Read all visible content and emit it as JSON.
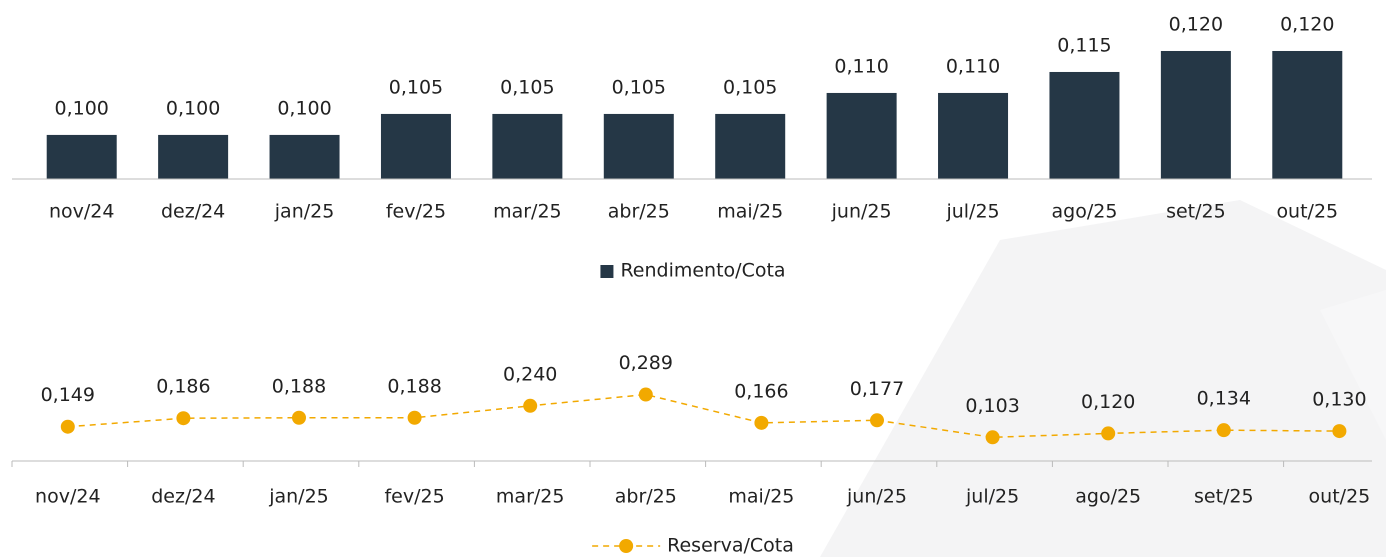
{
  "chart_data": [
    {
      "type": "bar",
      "categories": [
        "nov/24",
        "dez/24",
        "jan/25",
        "fev/25",
        "mar/25",
        "abr/25",
        "mai/25",
        "jun/25",
        "jul/25",
        "ago/25",
        "set/25",
        "out/25"
      ],
      "series": [
        {
          "name": "Rendimento/Cota",
          "color": "#253746",
          "values": [
            0.1,
            0.1,
            0.1,
            0.105,
            0.105,
            0.105,
            0.105,
            0.11,
            0.11,
            0.115,
            0.12,
            0.12
          ],
          "value_labels": [
            "0,100",
            "0,100",
            "0,100",
            "0,105",
            "0,105",
            "0,105",
            "0,105",
            "0,110",
            "0,110",
            "0,115",
            "0,120",
            "0,120"
          ]
        }
      ],
      "ylim": [
        0.0895,
        0.125
      ]
    },
    {
      "type": "line",
      "categories": [
        "nov/24",
        "dez/24",
        "jan/25",
        "fev/25",
        "mar/25",
        "abr/25",
        "mai/25",
        "jun/25",
        "jul/25",
        "ago/25",
        "set/25",
        "out/25"
      ],
      "series": [
        {
          "name": "Reserva/Cota",
          "color": "#f2a900",
          "line_style": "dashed",
          "values": [
            0.149,
            0.186,
            0.188,
            0.188,
            0.24,
            0.289,
            0.166,
            0.177,
            0.103,
            0.12,
            0.134,
            0.13
          ],
          "value_labels": [
            "0,149",
            "0,186",
            "0,188",
            "0,188",
            "0,240",
            "0,289",
            "0,166",
            "0,177",
            "0,103",
            "0,120",
            "0,134",
            "0,130"
          ]
        }
      ],
      "ylim": [
        0,
        0.5
      ]
    }
  ]
}
